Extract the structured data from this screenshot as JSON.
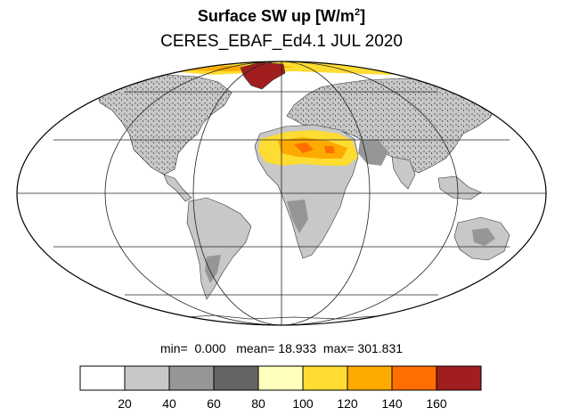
{
  "title": {
    "main": "Surface SW up [W/m",
    "sup": "2",
    "close": "]",
    "subtitle": "CERES_EBAF_Ed4.1 JUL 2020"
  },
  "stats": {
    "min_label": "min=",
    "min_value": "0.000",
    "mean_label": "mean=",
    "mean_value": "18.933",
    "max_label": "max=",
    "max_value": "301.831"
  },
  "colorbar": {
    "levels": [
      "20",
      "40",
      "60",
      "80",
      "100",
      "120",
      "140",
      "160"
    ],
    "colors": [
      "#ffffff",
      "#c8c8c8",
      "#969696",
      "#646464",
      "#ffffbe",
      "#ffdc32",
      "#ffaa00",
      "#ff6e00",
      "#a01e1e"
    ]
  },
  "map": {
    "projection": "mollweide",
    "land_color": "#c8c8c8",
    "ocean_color": "#ffffff",
    "desert_colors": [
      "#ffdc32",
      "#ffaa00",
      "#ff6e00"
    ],
    "ice_color": "#a01e1e"
  }
}
